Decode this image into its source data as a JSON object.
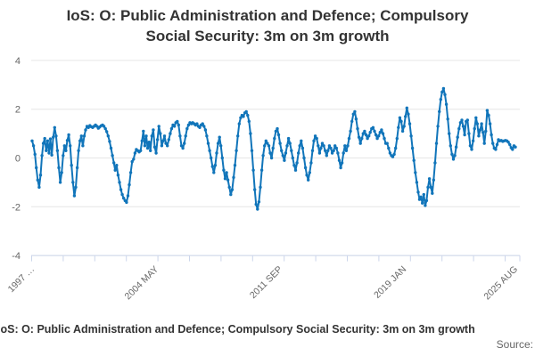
{
  "title": {
    "line1": "IoS: O: Public Administration and Defence; Compulsory",
    "line2": "Social Security: 3m on 3m growth"
  },
  "footer": {
    "caption": "IoS: O: Public Administration and Defence; Compulsory Social Security: 3m on 3m growth",
    "source_label": "Source:"
  },
  "colors": {
    "series": "#1175BA",
    "grid": "#E6E6E6",
    "axis": "#CCD6EB",
    "axis_labels": "#666666",
    "title": "#333333"
  },
  "chart_data": {
    "type": "line",
    "title": "IoS: O: Public Administration and Defence; Compulsory Social Security: 3m on 3m growth",
    "xlabel": "",
    "ylabel": "",
    "ylim": [
      -4,
      4
    ],
    "y_ticks": [
      4,
      2,
      0,
      -2,
      -4
    ],
    "y_tick_labels": [
      "4",
      "2",
      "0",
      "-2",
      "-4"
    ],
    "grid": true,
    "legend": false,
    "x_start": "1997 JAN",
    "x_end": "2025 AUG",
    "x_tick_labels": [
      "1997 …",
      "2004 MAY",
      "2011 SEP",
      "2019 JAN",
      "2025 AUG"
    ],
    "x_tick_label_months": [
      0,
      88,
      176,
      264,
      343
    ],
    "frequency": "monthly",
    "series": [
      {
        "name": "IoS: O: Public Administration and Defence; Compulsory Social Security: 3m on 3m growth",
        "color": "#1175BA",
        "values": [
          0.7,
          0.5,
          0.15,
          -0.4,
          -0.9,
          -1.2,
          -0.7,
          0.1,
          0.6,
          0.8,
          0.3,
          0.7,
          0.2,
          0.78,
          0.12,
          0.85,
          1.25,
          0.9,
          0.3,
          -0.4,
          -1.0,
          -0.6,
          0.1,
          0.5,
          0.3,
          0.72,
          0.95,
          0.5,
          -0.3,
          -1.0,
          -1.55,
          -1.2,
          -0.4,
          0.3,
          0.7,
          0.9,
          0.5,
          0.9,
          1.15,
          1.3,
          1.25,
          1.33,
          1.28,
          1.25,
          1.3,
          1.35,
          1.3,
          1.22,
          1.27,
          1.32,
          1.35,
          1.3,
          1.2,
          1.08,
          0.9,
          0.68,
          0.4,
          0.1,
          -0.2,
          -0.5,
          -0.3,
          -0.7,
          -1.0,
          -1.3,
          -1.5,
          -1.65,
          -1.75,
          -1.82,
          -1.55,
          -1.1,
          -0.6,
          -0.15,
          -0.05,
          0.2,
          0.35,
          0.3,
          0.25,
          0.3,
          0.7,
          1.1,
          0.5,
          0.9,
          0.4,
          0.65,
          0.3,
          0.9,
          1.15,
          0.45,
          0.2,
          0.75,
          1.3,
          1.0,
          0.5,
          0.7,
          0.9,
          0.6,
          0.5,
          0.75,
          1.0,
          1.2,
          1.35,
          1.3,
          1.45,
          1.5,
          1.35,
          0.9,
          0.5,
          0.4,
          0.6,
          0.9,
          1.2,
          1.35,
          1.45,
          1.4,
          1.45,
          1.4,
          1.35,
          1.4,
          1.3,
          1.25,
          1.35,
          1.4,
          1.3,
          1.15,
          0.9,
          0.6,
          0.3,
          0.0,
          -0.35,
          -0.6,
          -0.3,
          0.2,
          0.6,
          0.85,
          0.5,
          0.0,
          -0.5,
          -0.85,
          -0.6,
          -0.9,
          -1.2,
          -1.5,
          -1.3,
          -0.8,
          -0.3,
          0.3,
          0.9,
          1.4,
          1.65,
          1.75,
          1.7,
          1.85,
          1.9,
          1.75,
          1.5,
          1.0,
          0.3,
          -0.5,
          -1.3,
          -1.9,
          -2.1,
          -1.8,
          -1.2,
          -0.5,
          0.1,
          0.5,
          0.7,
          0.6,
          0.5,
          0.2,
          0.0,
          0.4,
          0.8,
          1.1,
          1.2,
          0.95,
          0.6,
          0.3,
          0.1,
          -0.1,
          0.2,
          0.5,
          0.8,
          0.6,
          0.3,
          0.0,
          -0.3,
          -0.5,
          -0.2,
          0.2,
          0.5,
          0.7,
          0.4,
          0.0,
          -0.4,
          -0.7,
          -0.9,
          -0.6,
          -0.2,
          0.3,
          0.7,
          0.9,
          0.8,
          0.5,
          0.2,
          0.4,
          0.6,
          0.5,
          0.3,
          0.1,
          0.3,
          0.5,
          0.4,
          0.2,
          0.3,
          0.5,
          0.4,
          0.2,
          -0.1,
          -0.4,
          -0.2,
          0.2,
          0.5,
          0.3,
          0.5,
          0.8,
          1.1,
          1.5,
          1.8,
          1.9,
          1.6,
          1.2,
          0.85,
          0.6,
          0.8,
          1.0,
          1.1,
          0.95,
          0.8,
          0.9,
          1.05,
          1.2,
          1.25,
          1.1,
          0.95,
          0.8,
          0.9,
          1.05,
          1.15,
          1.0,
          0.8,
          0.6,
          0.6,
          0.4,
          0.2,
          0.1,
          0.05,
          0.15,
          0.4,
          0.8,
          1.25,
          1.65,
          1.5,
          1.1,
          1.3,
          1.7,
          2.05,
          1.8,
          1.4,
          0.9,
          0.4,
          -0.1,
          -0.6,
          -1.0,
          -1.4,
          -1.7,
          -1.6,
          -1.85,
          -1.5,
          -1.95,
          -1.75,
          -1.2,
          -0.85,
          -1.2,
          -1.45,
          -0.9,
          -0.2,
          0.6,
          1.3,
          1.9,
          2.4,
          2.7,
          2.85,
          2.6,
          2.2,
          1.6,
          1.0,
          0.5,
          0.15,
          -0.05,
          0.1,
          0.45,
          0.85,
          1.2,
          1.45,
          1.55,
          1.3,
          0.95,
          1.5,
          1.55,
          1.0,
          0.5,
          0.35,
          0.7,
          1.2,
          1.65,
          1.4,
          0.9,
          1.15,
          1.4,
          1.05,
          0.6,
          1.1,
          1.95,
          1.75,
          1.4,
          0.95,
          0.6,
          0.4,
          0.35,
          0.55,
          0.75,
          0.7,
          0.72,
          0.68,
          0.7,
          0.72,
          0.7,
          0.65,
          0.55,
          0.42,
          0.35,
          0.5,
          0.45
        ]
      }
    ]
  }
}
